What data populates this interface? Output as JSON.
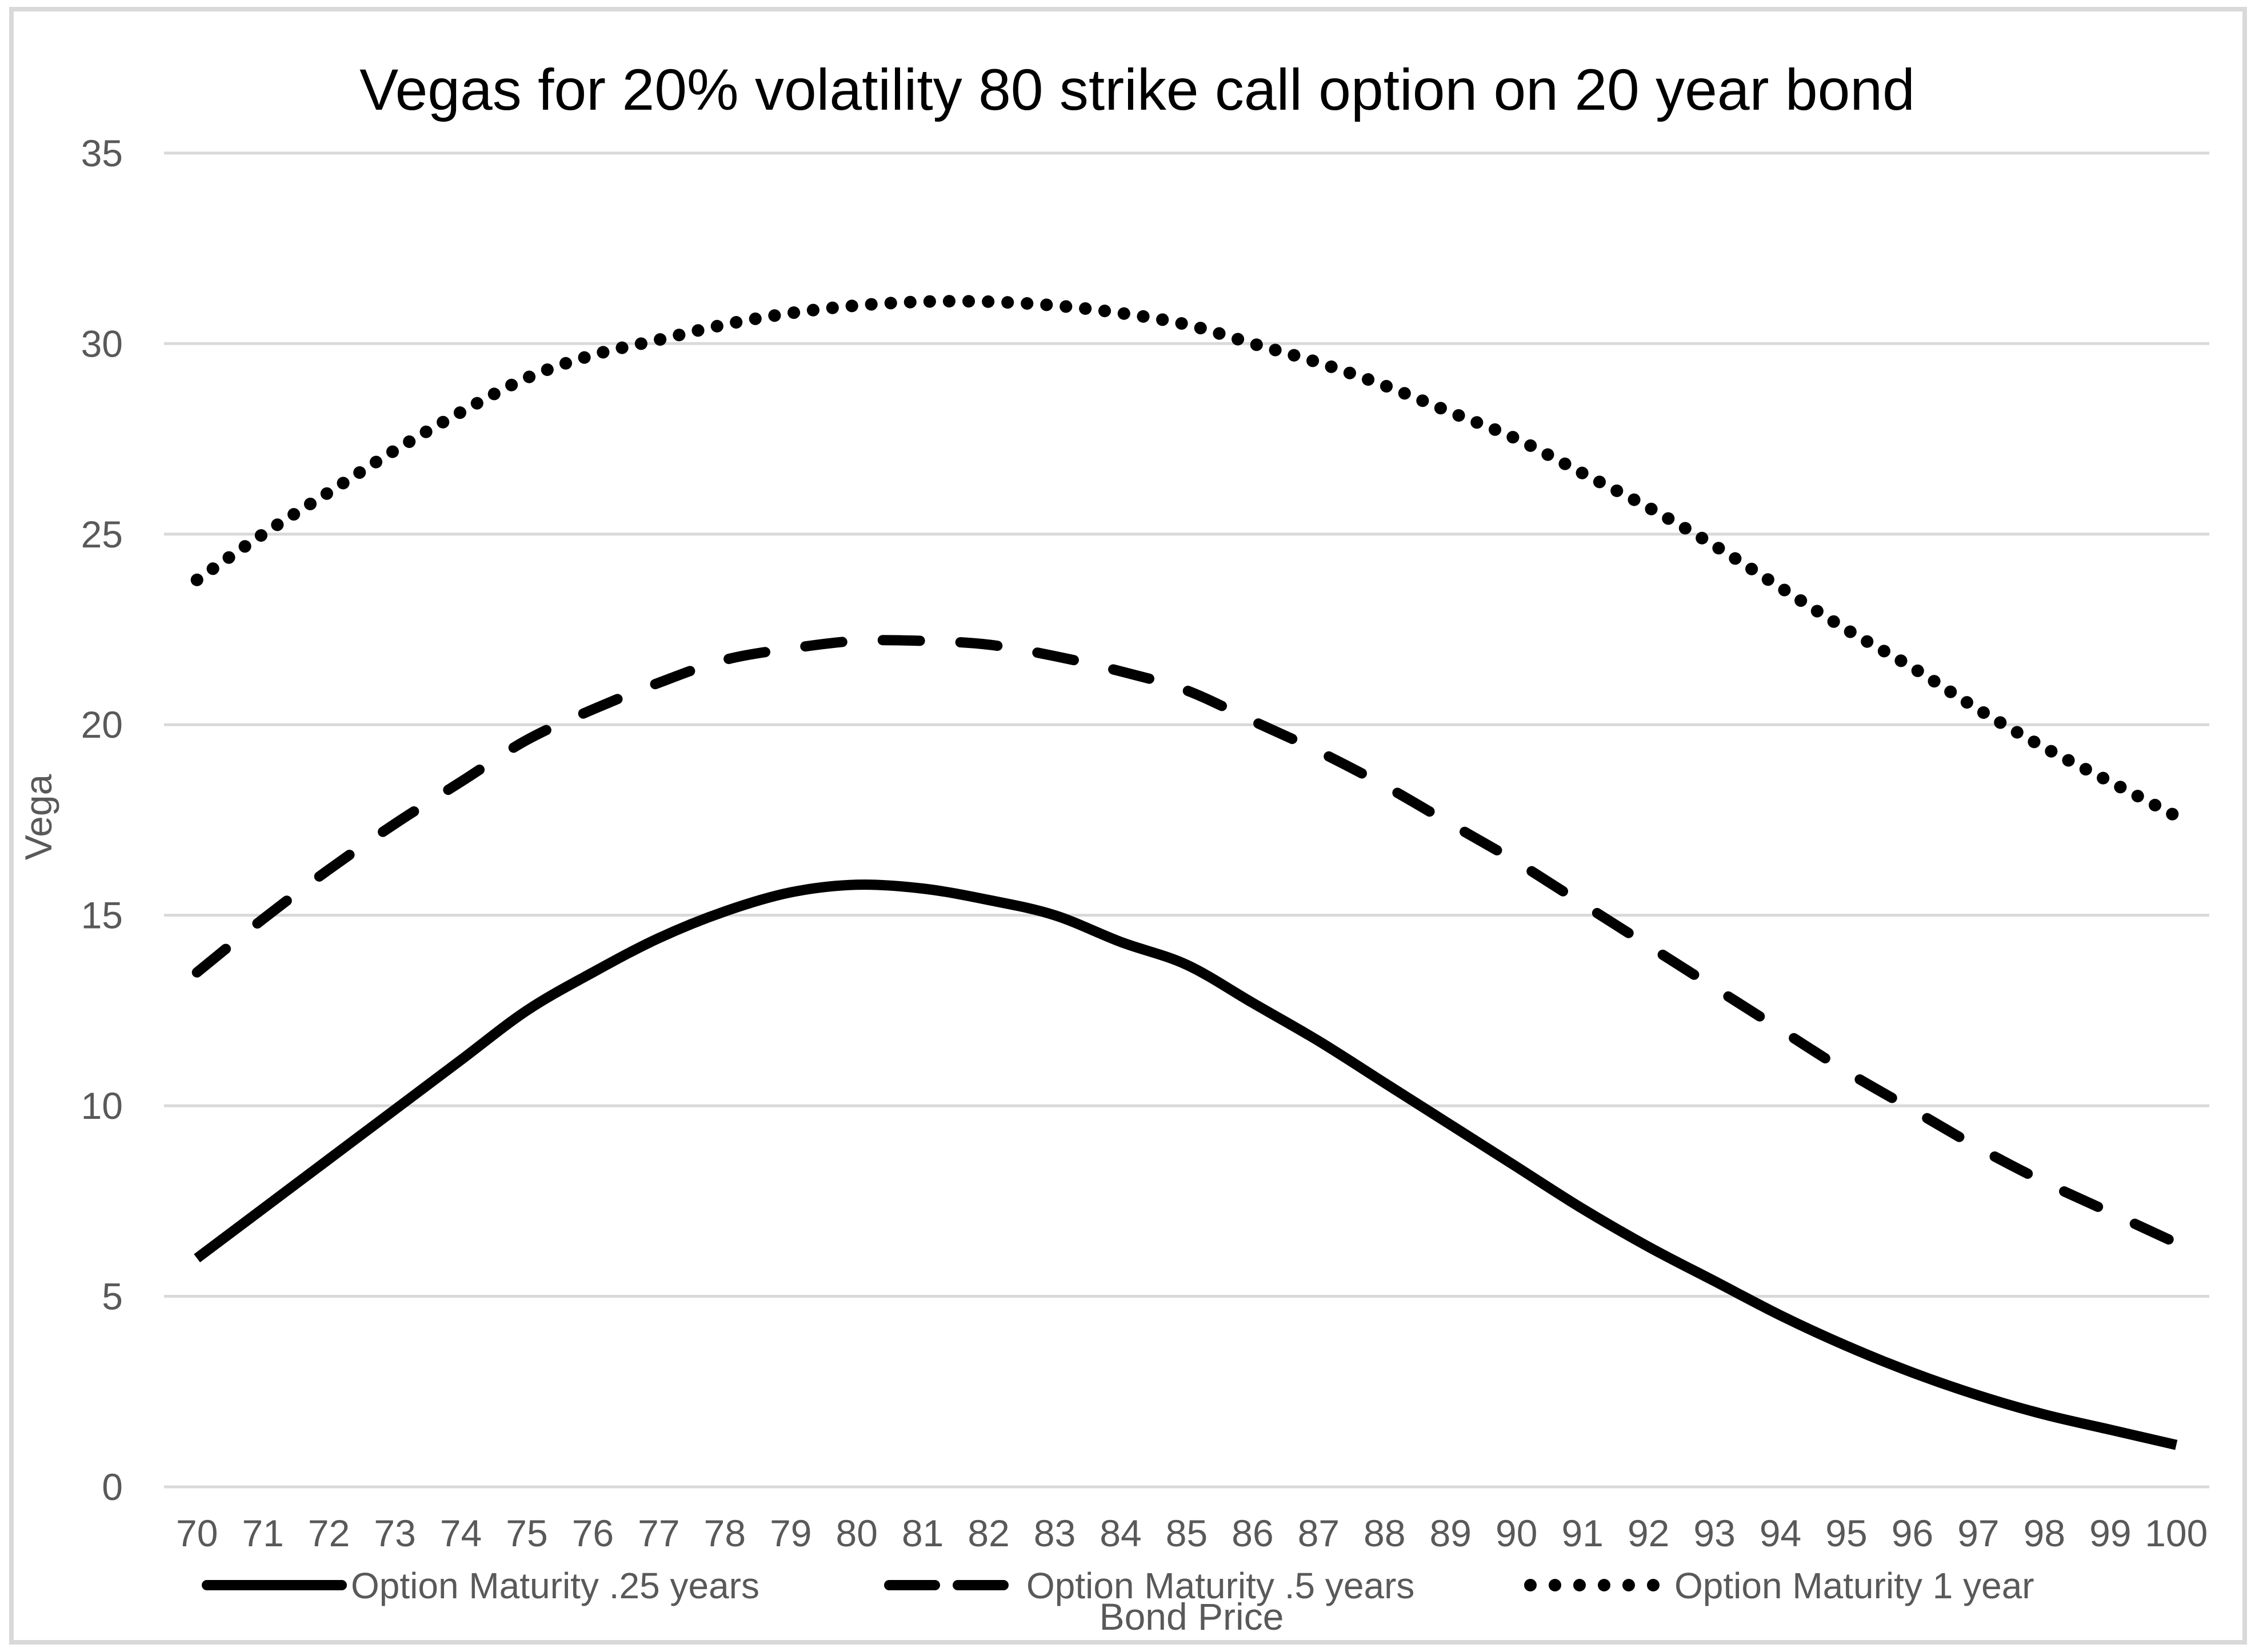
{
  "chart_data": {
    "type": "line",
    "title": "Vegas for 20% volatility 80 strike call option on 20 year bond",
    "xlabel": "Bond Price",
    "ylabel": "Vega",
    "x": [
      70,
      71,
      72,
      73,
      74,
      75,
      76,
      77,
      78,
      79,
      80,
      81,
      82,
      83,
      84,
      85,
      86,
      87,
      88,
      89,
      90,
      91,
      92,
      93,
      94,
      95,
      96,
      97,
      98,
      99,
      100
    ],
    "series": [
      {
        "name": "Option Maturity .25 years",
        "style": "solid",
        "values": [
          6.0,
          7.3,
          8.6,
          9.9,
          11.2,
          12.5,
          13.5,
          14.4,
          15.1,
          15.6,
          15.8,
          15.7,
          15.4,
          15.0,
          14.3,
          13.7,
          12.7,
          11.7,
          10.6,
          9.5,
          8.4,
          7.3,
          6.3,
          5.4,
          4.5,
          3.7,
          3.0,
          2.4,
          1.9,
          1.5,
          1.1
        ]
      },
      {
        "name": "Option Maturity .5 years",
        "style": "dashed",
        "values": [
          13.5,
          14.9,
          16.2,
          17.4,
          18.5,
          19.6,
          20.4,
          21.1,
          21.7,
          22.0,
          22.2,
          22.2,
          22.1,
          21.8,
          21.4,
          20.9,
          20.1,
          19.3,
          18.4,
          17.4,
          16.4,
          15.3,
          14.2,
          13.1,
          12.0,
          10.9,
          9.9,
          8.9,
          8.0,
          7.2,
          6.4
        ]
      },
      {
        "name": "Option Maturity 1 year",
        "style": "dotted",
        "values": [
          23.8,
          25.0,
          26.1,
          27.2,
          28.2,
          29.1,
          29.7,
          30.1,
          30.5,
          30.8,
          31.0,
          31.1,
          31.1,
          31.0,
          30.8,
          30.5,
          30.0,
          29.5,
          28.9,
          28.2,
          27.5,
          26.6,
          25.7,
          24.7,
          23.6,
          22.5,
          21.5,
          20.4,
          19.4,
          18.5,
          17.6
        ]
      }
    ],
    "ylim": [
      0,
      35
    ],
    "yticks": [
      0,
      5,
      10,
      15,
      20,
      25,
      30,
      35
    ],
    "grid": true,
    "legend_position": "bottom",
    "series_color": "#000000"
  },
  "colors": {
    "text_gray": "#595959",
    "gridline": "#d9d9d9",
    "series": "#000000",
    "background": "#ffffff"
  }
}
